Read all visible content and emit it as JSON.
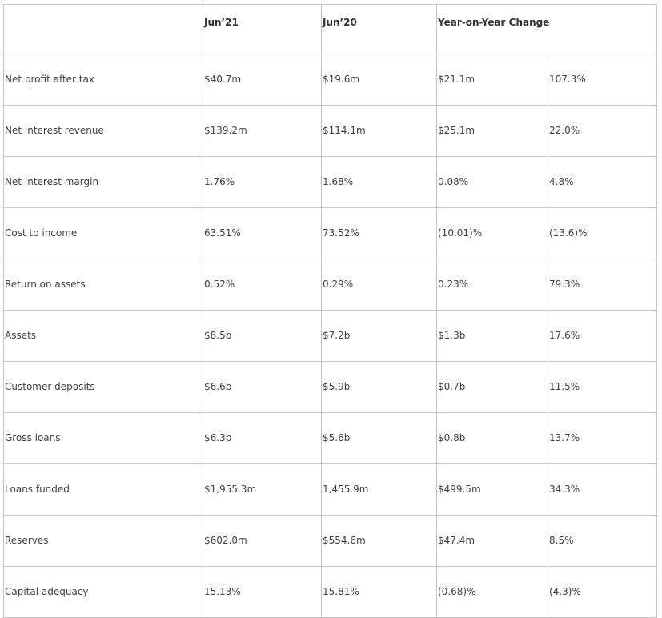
{
  "table": {
    "headers": [
      "",
      "Jun’21",
      "Jun’20",
      "Year-on-Year Change"
    ],
    "rows": [
      {
        "label": "Net profit after tax",
        "jun21": "$40.7m",
        "jun20": "$19.6m",
        "change": "$21.1m",
        "pct": "107.3%"
      },
      {
        "label": "Net interest revenue",
        "jun21": "$139.2m",
        "jun20": "$114.1m",
        "change": "$25.1m",
        "pct": "22.0%"
      },
      {
        "label": "Net interest margin",
        "jun21": "1.76%",
        "jun20": "1.68%",
        "change": "0.08%",
        "pct": "4.8%"
      },
      {
        "label": "Cost to income",
        "jun21": "63.51%",
        "jun20": "73.52%",
        "change": "(10.01)%",
        "pct": "(13.6)%"
      },
      {
        "label": "Return on assets",
        "jun21": "0.52%",
        "jun20": "0.29%",
        "change": "0.23%",
        "pct": "79.3%"
      },
      {
        "label": "Assets",
        "jun21": "$8.5b",
        "jun20": "$7.2b",
        "change": "$1.3b",
        "pct": "17.6%"
      },
      {
        "label": "Customer deposits",
        "jun21": "$6.6b",
        "jun20": "$5.9b",
        "change": "$0.7b",
        "pct": "11.5%"
      },
      {
        "label": "Gross loans",
        "jun21": "$6.3b",
        "jun20": "$5.6b",
        "change": "$0.8b",
        "pct": "13.7%"
      },
      {
        "label": "Loans funded",
        "jun21": "$1,955.3m",
        "jun20": "1,455.9m",
        "change": "$499.5m",
        "pct": "34.3%"
      },
      {
        "label": "Reserves",
        "jun21": "$602.0m",
        "jun20": "$554.6m",
        "change": "$47.4m",
        "pct": "8.5%"
      },
      {
        "label": "Capital adequacy",
        "jun21": "15.13%",
        "jun20": "15.81%",
        "change": "(0.68)%",
        "pct": "(4.3)%"
      }
    ]
  }
}
